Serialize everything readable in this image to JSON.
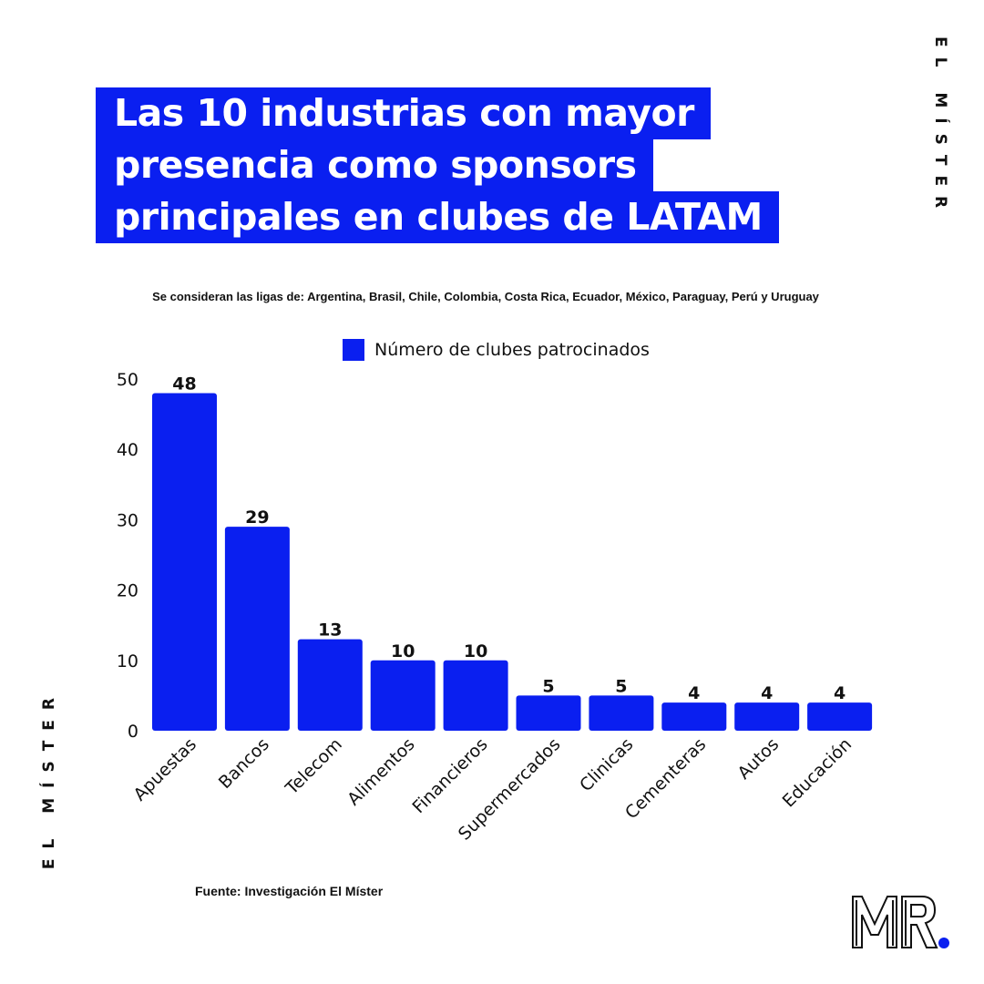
{
  "title": {
    "lines": [
      "Las 10 industrias con mayor",
      "presencia como sponsors",
      "principales en clubes de LATAM"
    ]
  },
  "subtitle": "Se consideran las ligas de: Argentina, Brasil, Chile, Colombia, Costa Rica, Ecuador, México, Paraguay, Perú y Uruguay",
  "brand": {
    "vertical_text": "EL MÍSTER",
    "logo_text": "MR."
  },
  "source": "Fuente: Investigación El Míster",
  "colors": {
    "accent": "#0a1ff0",
    "text": "#111111",
    "background": "#ffffff"
  },
  "chart_data": {
    "type": "bar",
    "categories": [
      "Apuestas",
      "Bancos",
      "Telecom",
      "Alimentos",
      "Financieros",
      "Supermercados",
      "Clinicas",
      "Cementeras",
      "Autos",
      "Educación"
    ],
    "series": [
      {
        "name": "Número de clubes patrocinados",
        "values": [
          48,
          29,
          13,
          10,
          10,
          5,
          5,
          4,
          4,
          4
        ]
      }
    ],
    "ylim": [
      0,
      50
    ],
    "yticks": [
      0,
      10,
      20,
      30,
      40,
      50
    ],
    "data_labels": true,
    "grid": false,
    "legend_position": "top-center"
  }
}
